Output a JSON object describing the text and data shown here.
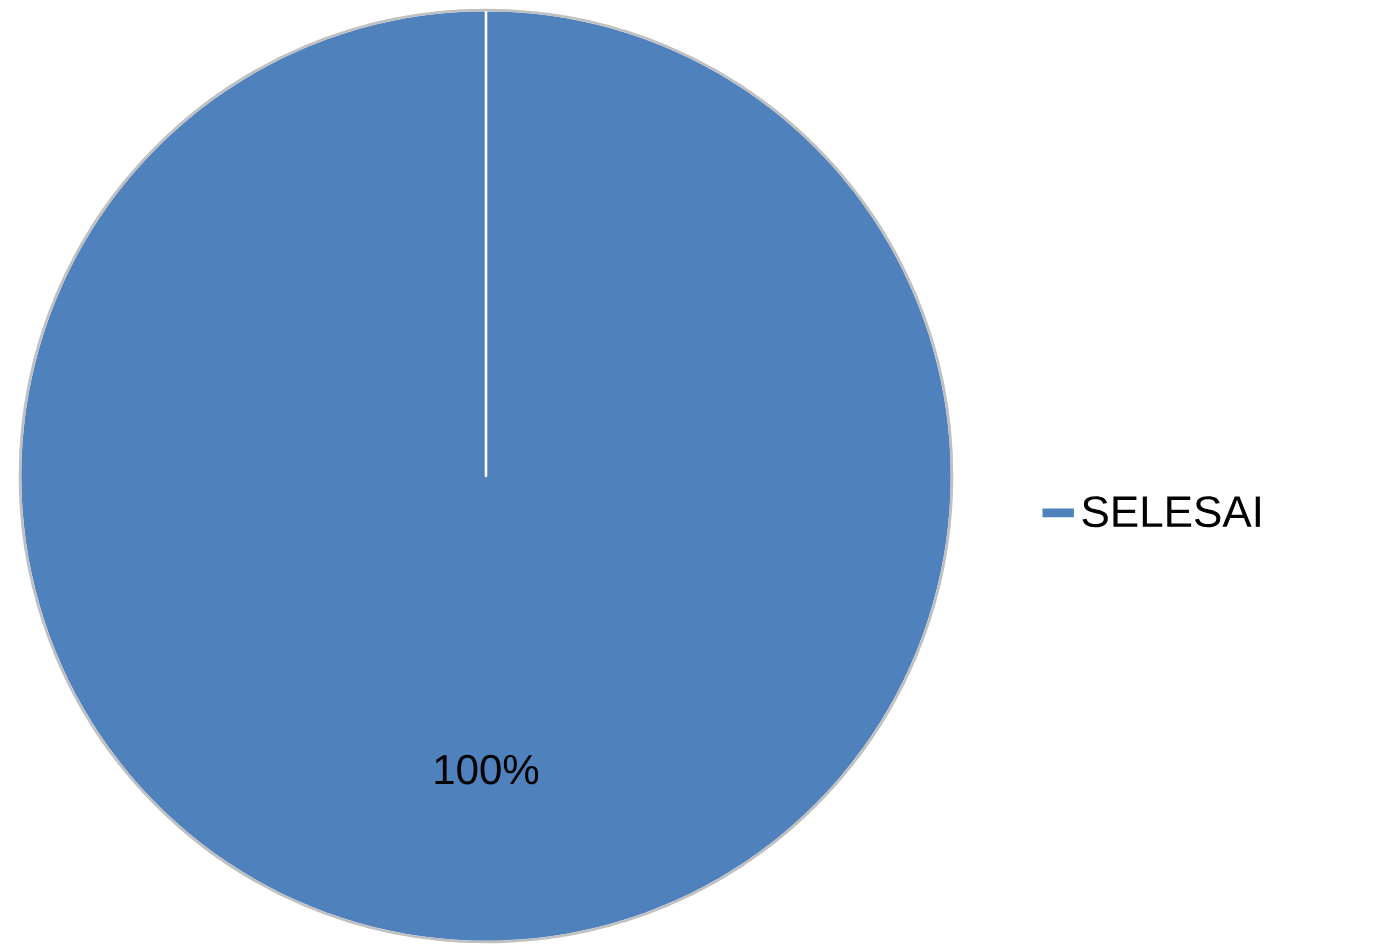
{
  "chart_data": {
    "type": "pie",
    "categories": [
      "SELESAI"
    ],
    "values": [
      100
    ],
    "colors": [
      "#4f81bd"
    ],
    "data_labels": true,
    "value_labels": [
      "100%"
    ],
    "legend": "right"
  }
}
